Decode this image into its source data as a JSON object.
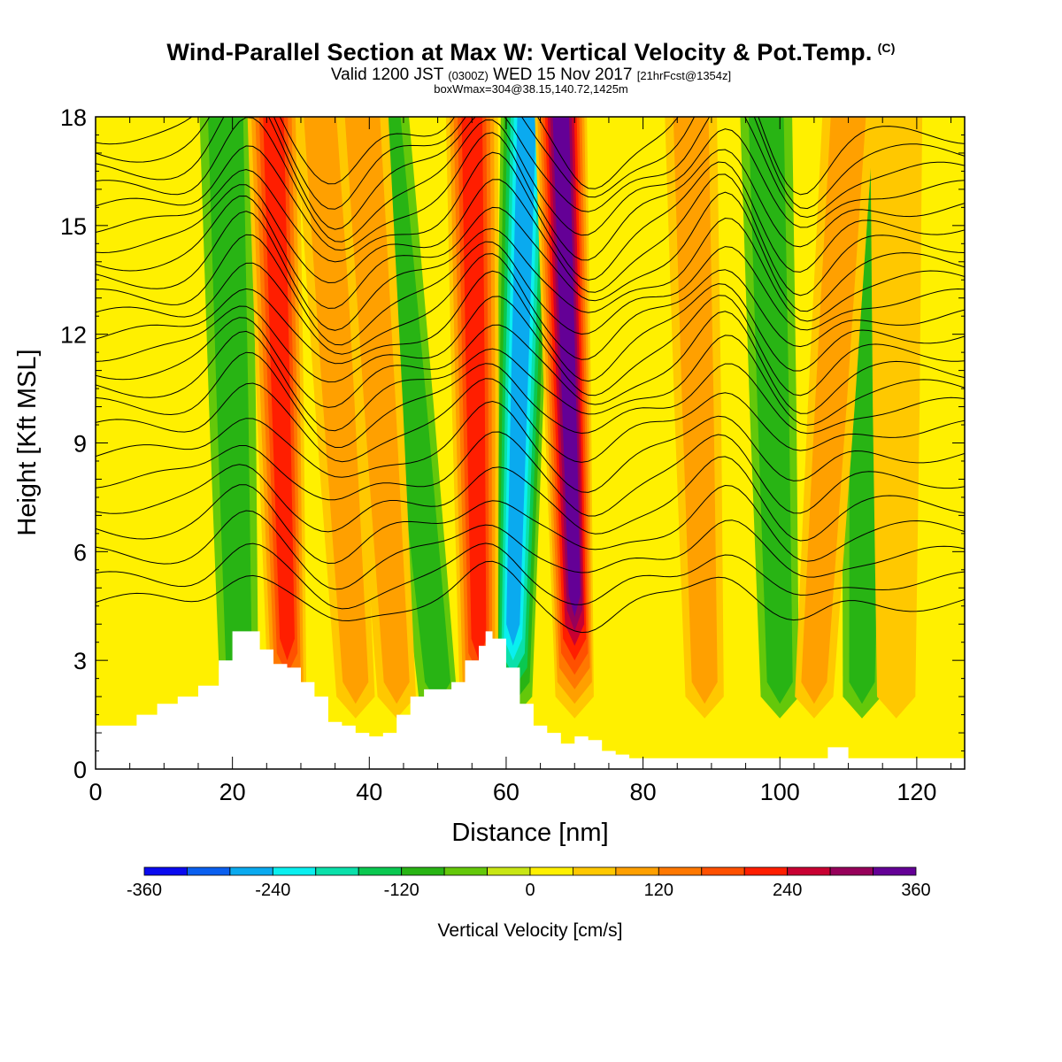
{
  "header": {
    "title_main": "Wind-Parallel Section at Max W: Vertical Velocity & Pot.Temp.",
    "title_mark": "(C)",
    "valid_prefix": "Valid 1200 JST",
    "valid_zulu": "(0300Z)",
    "valid_date": "WED 15 Nov 2017",
    "forecast_note": "[21hrFcst@1354z]",
    "box_info": "boxWmax=304@38.15,140.72,1425m"
  },
  "chart_data": {
    "type": "heatmap",
    "title": "Wind-Parallel Section at Max W: Vertical Velocity & Pot.Temp.",
    "xlabel": "Distance [nm]",
    "ylabel": "Height [Kft MSL]",
    "xlim": [
      0,
      127
    ],
    "ylim": [
      0,
      18
    ],
    "xticks": [
      0,
      20,
      40,
      60,
      80,
      100,
      120
    ],
    "yticks": [
      0,
      3,
      6,
      9,
      12,
      15,
      18
    ],
    "colorbar": {
      "label": "Vertical Velocity [cm/s]",
      "levels": [
        -360,
        -320,
        -280,
        -240,
        -200,
        -160,
        -120,
        -80,
        -40,
        0,
        40,
        80,
        120,
        160,
        200,
        240,
        280,
        320,
        360
      ],
      "colors": [
        "#0a0aef",
        "#0a5fef",
        "#0aaaef",
        "#0aefef",
        "#0ae0aa",
        "#0ac850",
        "#28b414",
        "#64c80a",
        "#c8e614",
        "#fff000",
        "#ffc800",
        "#ffa000",
        "#ff7800",
        "#ff5000",
        "#ff1e00",
        "#c80032",
        "#96005a",
        "#640096"
      ],
      "tick_labels": [
        "-360",
        "-240",
        "-120",
        "0",
        "120",
        "240",
        "360"
      ]
    },
    "updraft_bands": [
      {
        "x_base": 28,
        "x_top": 26,
        "peak": 220
      },
      {
        "x_base": 38,
        "x_top": 33,
        "peak": 90
      },
      {
        "x_base": 44,
        "x_top": 39,
        "peak": 80
      },
      {
        "x_base": 56,
        "x_top": 55,
        "peak": 200
      },
      {
        "x_base": 70,
        "x_top": 68,
        "peak": 340
      },
      {
        "x_base": 89,
        "x_top": 87,
        "peak": 110
      },
      {
        "x_base": 105,
        "x_top": 110,
        "peak": 80
      },
      {
        "x_base": 117,
        "x_top": 117,
        "peak": 60
      }
    ],
    "downdraft_bands": [
      {
        "x_base": 21,
        "x_top": 19,
        "peak": -110
      },
      {
        "x_base": 61,
        "x_top": 63,
        "peak": -260
      },
      {
        "x_base": 50,
        "x_top": 42,
        "peak": -80
      },
      {
        "x_base": 100,
        "x_top": 98,
        "peak": -100
      },
      {
        "x_base": 112,
        "x_top": 113,
        "peak": -90
      }
    ],
    "terrain": {
      "x": [
        0,
        3,
        6,
        9,
        12,
        15,
        18,
        20,
        22,
        24,
        26,
        28,
        30,
        32,
        34,
        36,
        38,
        40,
        42,
        44,
        46,
        48,
        50,
        52,
        54,
        56,
        57,
        58,
        60,
        62,
        64,
        66,
        68,
        70,
        72,
        74,
        76,
        78,
        80,
        82,
        84,
        86,
        88,
        90,
        92,
        94,
        96,
        98,
        100,
        102,
        104,
        106,
        107,
        108,
        110,
        112,
        115,
        118,
        121,
        124,
        127
      ],
      "height_kft": [
        1.2,
        1.2,
        1.5,
        1.8,
        2.0,
        2.3,
        3.0,
        3.8,
        3.8,
        3.3,
        2.9,
        2.8,
        2.4,
        2.0,
        1.3,
        1.2,
        1.0,
        0.9,
        1.0,
        1.5,
        2.0,
        2.2,
        2.2,
        2.4,
        3.0,
        3.4,
        3.8,
        3.6,
        2.8,
        1.8,
        1.2,
        1.0,
        0.7,
        0.9,
        0.8,
        0.5,
        0.4,
        0.3,
        0.3,
        0.3,
        0.3,
        0.3,
        0.3,
        0.3,
        0.3,
        0.3,
        0.3,
        0.3,
        0.3,
        0.3,
        0.3,
        0.3,
        0.6,
        0.6,
        0.3,
        0.3,
        0.3,
        0.3,
        0.3,
        0.3,
        0.3
      ]
    },
    "theta_contours_kft": [
      4.6,
      5.2,
      5.9,
      6.6,
      7.3,
      8.0,
      8.7,
      9.4,
      10.0,
      10.5,
      11.0,
      11.5,
      12.0,
      12.5,
      13.0,
      13.5,
      14.0,
      14.5,
      15.0,
      15.5,
      16.0,
      16.5,
      17.0,
      17.5
    ]
  }
}
